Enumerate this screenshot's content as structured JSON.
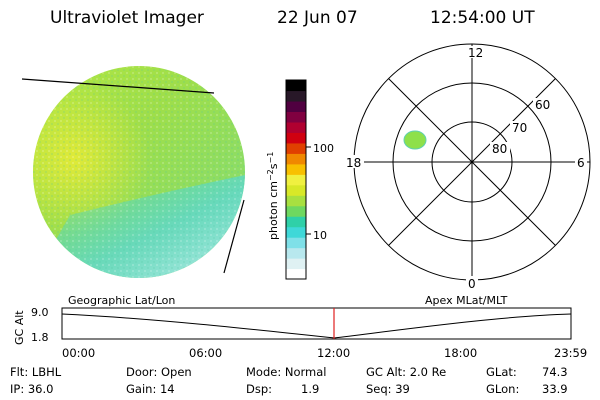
{
  "header": {
    "title": "Ultraviolet Imager",
    "date": "22 Jun 07",
    "time": "12:54:00 UT"
  },
  "colorbar": {
    "label": "photon cm",
    "exp1": "−2",
    "mid": "s",
    "exp2": "−1",
    "ticks": [
      "100",
      "10"
    ],
    "colors": [
      "#ffffff",
      "#dff1f3",
      "#b8e8ee",
      "#7fe0e8",
      "#3fd8d8",
      "#2fd0a8",
      "#6fd860",
      "#a8e040",
      "#d8e828",
      "#f0f040",
      "#f8c000",
      "#f08800",
      "#e04000",
      "#d00010",
      "#b00030",
      "#800040",
      "#500040",
      "#281828",
      "#000000"
    ]
  },
  "polar": {
    "mlt_labels": {
      "top": "12",
      "bottom": "0",
      "left": "18",
      "right": "6"
    },
    "lat_labels": [
      "60",
      "70",
      "80"
    ]
  },
  "timeline": {
    "left_label": "Geographic Lat/Lon",
    "right_label": "Apex MLat/MLT",
    "axis_title": "GC Alt",
    "y_ticks": [
      "9.0",
      "1.8"
    ],
    "x_ticks": [
      "00:00",
      "06:00",
      "12:00",
      "18:00",
      "23:59"
    ],
    "marker_time": "12:54"
  },
  "footer": {
    "flt": "Flt: LBHL",
    "ip": "IP: 36.0",
    "door": "Door: Open",
    "gain": "Gain: 14",
    "mode": "Mode: Normal",
    "dsp_label": "Dsp:",
    "dsp_value": "1.9",
    "gc_alt": "GC Alt: 2.0 Re",
    "seq": "Seq: 39",
    "glat_label": "GLat:",
    "glat_value": "74.3",
    "glon_label": "GLon:",
    "glon_value": "33.9"
  },
  "colors": {
    "disk_main": "#9ee04a",
    "disk_yellow": "#d8ec3a",
    "disk_cyan": "#6fe2d8",
    "disk_pale": "#c4eef0",
    "marker": "#e02020"
  }
}
